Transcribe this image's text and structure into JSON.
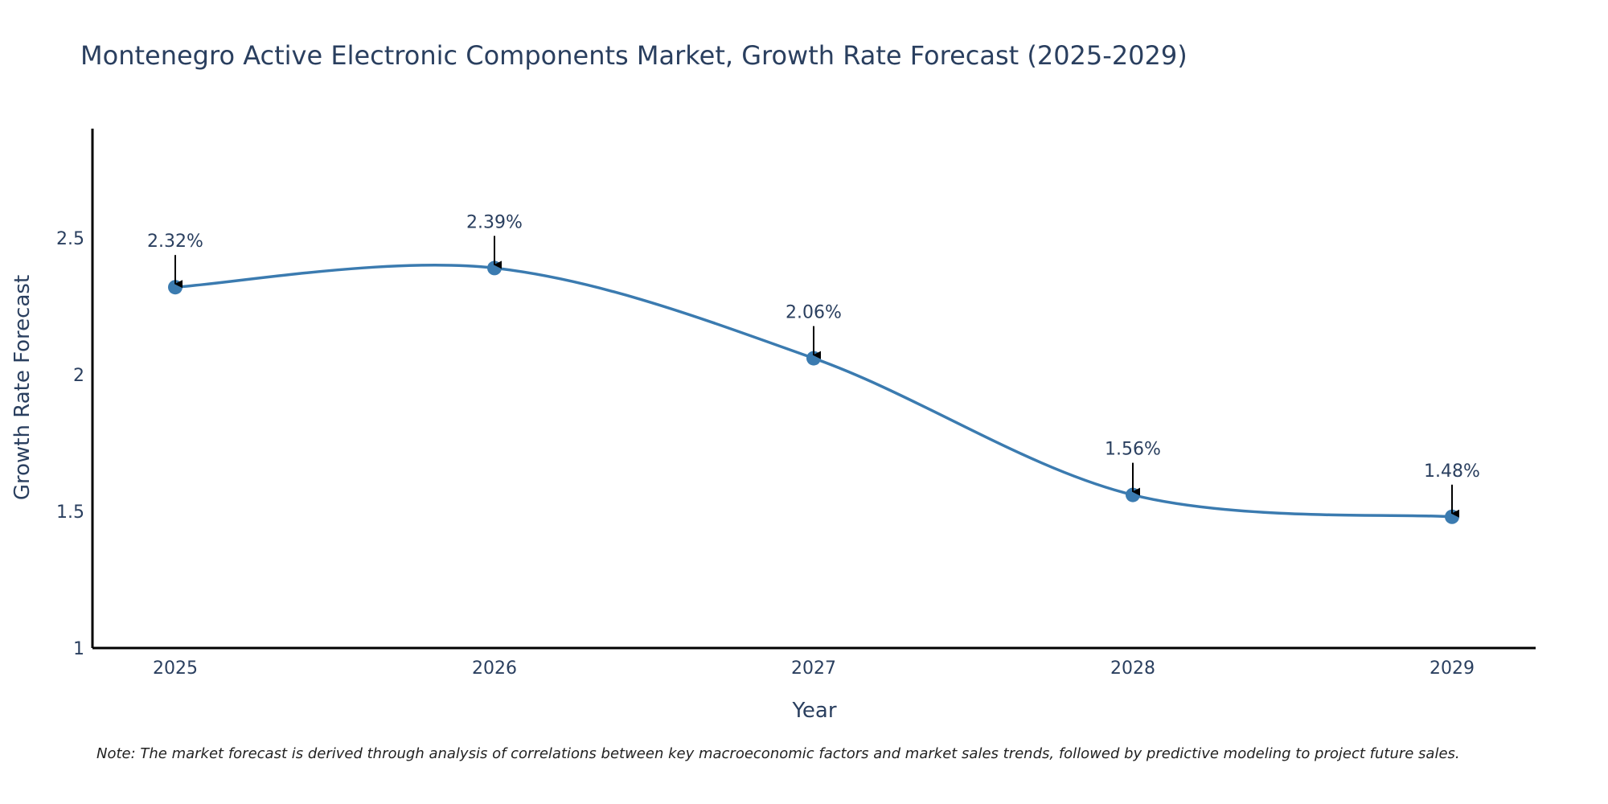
{
  "chart_data": {
    "type": "line",
    "title": "Montenegro Active Electronic Components Market, Growth Rate Forecast (2025-2029)",
    "xlabel": "Year",
    "ylabel": "Growth Rate Forecast",
    "categories": [
      "2025",
      "2026",
      "2027",
      "2028",
      "2029"
    ],
    "series": [
      {
        "name": "Growth Rate Forecast",
        "values": [
          2.32,
          2.39,
          2.06,
          1.56,
          1.48
        ],
        "labels": [
          "2.32%",
          "2.39%",
          "2.06%",
          "1.56%",
          "1.48%"
        ]
      }
    ],
    "ylim": [
      1,
      2.9
    ],
    "yticks": [
      1,
      1.5,
      2,
      2.5
    ],
    "ytick_labels": [
      "1",
      "1.5",
      "2",
      "2.5"
    ],
    "grid": false,
    "line_shape": "spline",
    "annotations": "arrow above each point with percentage label",
    "colors": {
      "line": "#3b7bb0",
      "marker": "#3b7bb0",
      "arrow": "#000000",
      "axis": "#000000"
    }
  },
  "note": "Note: The market forecast is derived through analysis of correlations between key macroeconomic factors and market sales trends, followed by predictive modeling to project future sales."
}
